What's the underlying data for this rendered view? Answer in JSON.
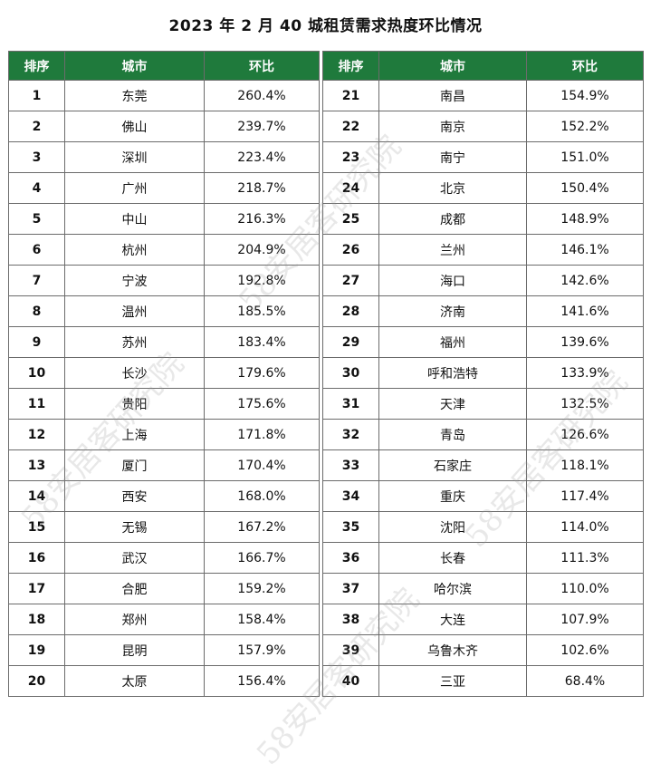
{
  "title": "2023 年 2 月 40 城租赁需求热度环比情况",
  "headers": {
    "rank": "排序",
    "city": "城市",
    "mom": "环比"
  },
  "rows": [
    {
      "left": {
        "rank": "1",
        "city": "东莞",
        "mom": "260.4%"
      },
      "right": {
        "rank": "21",
        "city": "南昌",
        "mom": "154.9%"
      }
    },
    {
      "left": {
        "rank": "2",
        "city": "佛山",
        "mom": "239.7%"
      },
      "right": {
        "rank": "22",
        "city": "南京",
        "mom": "152.2%"
      }
    },
    {
      "left": {
        "rank": "3",
        "city": "深圳",
        "mom": "223.4%"
      },
      "right": {
        "rank": "23",
        "city": "南宁",
        "mom": "151.0%"
      }
    },
    {
      "left": {
        "rank": "4",
        "city": "广州",
        "mom": "218.7%"
      },
      "right": {
        "rank": "24",
        "city": "北京",
        "mom": "150.4%"
      }
    },
    {
      "left": {
        "rank": "5",
        "city": "中山",
        "mom": "216.3%"
      },
      "right": {
        "rank": "25",
        "city": "成都",
        "mom": "148.9%"
      }
    },
    {
      "left": {
        "rank": "6",
        "city": "杭州",
        "mom": "204.9%"
      },
      "right": {
        "rank": "26",
        "city": "兰州",
        "mom": "146.1%"
      }
    },
    {
      "left": {
        "rank": "7",
        "city": "宁波",
        "mom": "192.8%"
      },
      "right": {
        "rank": "27",
        "city": "海口",
        "mom": "142.6%"
      }
    },
    {
      "left": {
        "rank": "8",
        "city": "温州",
        "mom": "185.5%"
      },
      "right": {
        "rank": "28",
        "city": "济南",
        "mom": "141.6%"
      }
    },
    {
      "left": {
        "rank": "9",
        "city": "苏州",
        "mom": "183.4%"
      },
      "right": {
        "rank": "29",
        "city": "福州",
        "mom": "139.6%"
      }
    },
    {
      "left": {
        "rank": "10",
        "city": "长沙",
        "mom": "179.6%"
      },
      "right": {
        "rank": "30",
        "city": "呼和浩特",
        "mom": "133.9%"
      }
    },
    {
      "left": {
        "rank": "11",
        "city": "贵阳",
        "mom": "175.6%"
      },
      "right": {
        "rank": "31",
        "city": "天津",
        "mom": "132.5%"
      }
    },
    {
      "left": {
        "rank": "12",
        "city": "上海",
        "mom": "171.8%"
      },
      "right": {
        "rank": "32",
        "city": "青岛",
        "mom": "126.6%"
      }
    },
    {
      "left": {
        "rank": "13",
        "city": "厦门",
        "mom": "170.4%"
      },
      "right": {
        "rank": "33",
        "city": "石家庄",
        "mom": "118.1%"
      }
    },
    {
      "left": {
        "rank": "14",
        "city": "西安",
        "mom": "168.0%"
      },
      "right": {
        "rank": "34",
        "city": "重庆",
        "mom": "117.4%"
      }
    },
    {
      "left": {
        "rank": "15",
        "city": "无锡",
        "mom": "167.2%"
      },
      "right": {
        "rank": "35",
        "city": "沈阳",
        "mom": "114.0%"
      }
    },
    {
      "left": {
        "rank": "16",
        "city": "武汉",
        "mom": "166.7%"
      },
      "right": {
        "rank": "36",
        "city": "长春",
        "mom": "111.3%"
      }
    },
    {
      "left": {
        "rank": "17",
        "city": "合肥",
        "mom": "159.2%"
      },
      "right": {
        "rank": "37",
        "city": "哈尔滨",
        "mom": "110.0%"
      }
    },
    {
      "left": {
        "rank": "18",
        "city": "郑州",
        "mom": "158.4%"
      },
      "right": {
        "rank": "38",
        "city": "大连",
        "mom": "107.9%"
      }
    },
    {
      "left": {
        "rank": "19",
        "city": "昆明",
        "mom": "157.9%"
      },
      "right": {
        "rank": "39",
        "city": "乌鲁木齐",
        "mom": "102.6%"
      }
    },
    {
      "left": {
        "rank": "20",
        "city": "太原",
        "mom": "156.4%"
      },
      "right": {
        "rank": "40",
        "city": "三亚",
        "mom": "68.4%"
      }
    }
  ],
  "watermark": "58安居客研究院",
  "colors": {
    "header_bg": "#1f7a3c",
    "header_text": "#ffffff",
    "border": "#6b6b6b"
  }
}
